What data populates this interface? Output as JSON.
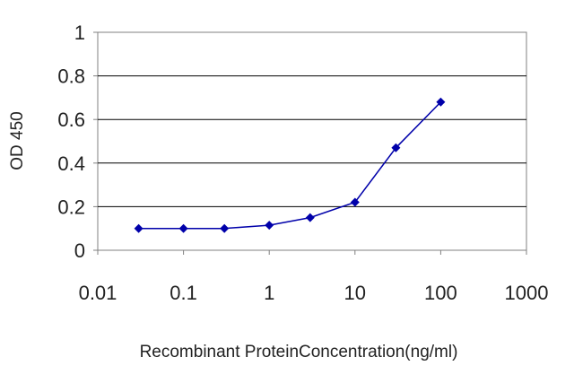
{
  "chart_data": {
    "type": "line",
    "title": "",
    "xlabel": "Recombinant ProteinConcentration(ng/ml)",
    "ylabel": "OD 450",
    "x_scale": "log",
    "xlim": [
      0.01,
      1000
    ],
    "ylim": [
      0,
      1
    ],
    "x_ticks": [
      "0.01",
      "0.1",
      "1",
      "10",
      "100",
      "1000"
    ],
    "y_ticks": [
      "0",
      "0.2",
      "0.4",
      "0.6",
      "0.8",
      "1"
    ],
    "grid": "horizontal",
    "legend": "none",
    "series": [
      {
        "color": "#0000aa",
        "marker": "diamond",
        "points": [
          {
            "x": 0.03,
            "y": 0.1
          },
          {
            "x": 0.1,
            "y": 0.1
          },
          {
            "x": 0.3,
            "y": 0.1
          },
          {
            "x": 1,
            "y": 0.115
          },
          {
            "x": 3,
            "y": 0.15
          },
          {
            "x": 10,
            "y": 0.22
          },
          {
            "x": 30,
            "y": 0.47
          },
          {
            "x": 100,
            "y": 0.68
          }
        ]
      }
    ],
    "colors": {
      "frame": "#808080",
      "grid": "#000000",
      "series": "#0000aa"
    }
  }
}
